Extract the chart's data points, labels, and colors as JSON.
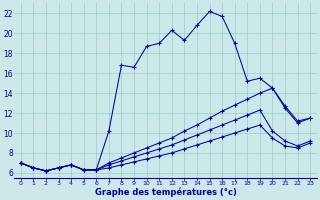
{
  "xlabel": "Graphe des températures (°c)",
  "background_color": "#cce8e8",
  "grid_color": "#99cccc",
  "line_color": "#0000aa",
  "border_color": "#0000aa",
  "x_ticks": [
    0,
    1,
    2,
    3,
    4,
    5,
    6,
    7,
    8,
    9,
    10,
    11,
    12,
    13,
    14,
    15,
    16,
    17,
    18,
    19,
    20,
    21,
    22,
    23
  ],
  "y_ticks": [
    6,
    8,
    10,
    12,
    14,
    16,
    18,
    20,
    22
  ],
  "xlim": [
    -0.5,
    23.5
  ],
  "ylim": [
    5.5,
    23.0
  ],
  "series": [
    [
      7.0,
      6.5,
      6.2,
      6.5,
      6.8,
      6.3,
      6.3,
      10.2,
      16.8,
      16.6,
      18.7,
      19.0,
      20.3,
      19.3,
      20.8,
      22.2,
      21.7,
      19.0,
      15.2,
      15.5,
      14.5,
      12.5,
      11.0,
      11.5
    ],
    [
      7.0,
      6.5,
      6.2,
      6.5,
      6.8,
      6.3,
      6.3,
      7.0,
      7.5,
      8.0,
      8.5,
      9.0,
      9.5,
      10.2,
      10.8,
      11.5,
      12.2,
      12.8,
      13.4,
      14.0,
      14.5,
      12.7,
      11.2,
      11.5
    ],
    [
      7.0,
      6.5,
      6.2,
      6.5,
      6.8,
      6.3,
      6.3,
      6.8,
      7.2,
      7.6,
      8.0,
      8.4,
      8.8,
      9.3,
      9.8,
      10.3,
      10.8,
      11.3,
      11.8,
      12.3,
      10.2,
      9.2,
      8.7,
      9.2
    ],
    [
      7.0,
      6.5,
      6.2,
      6.5,
      6.8,
      6.3,
      6.3,
      6.5,
      6.8,
      7.1,
      7.4,
      7.7,
      8.0,
      8.4,
      8.8,
      9.2,
      9.6,
      10.0,
      10.4,
      10.8,
      9.5,
      8.7,
      8.5,
      9.0
    ]
  ]
}
